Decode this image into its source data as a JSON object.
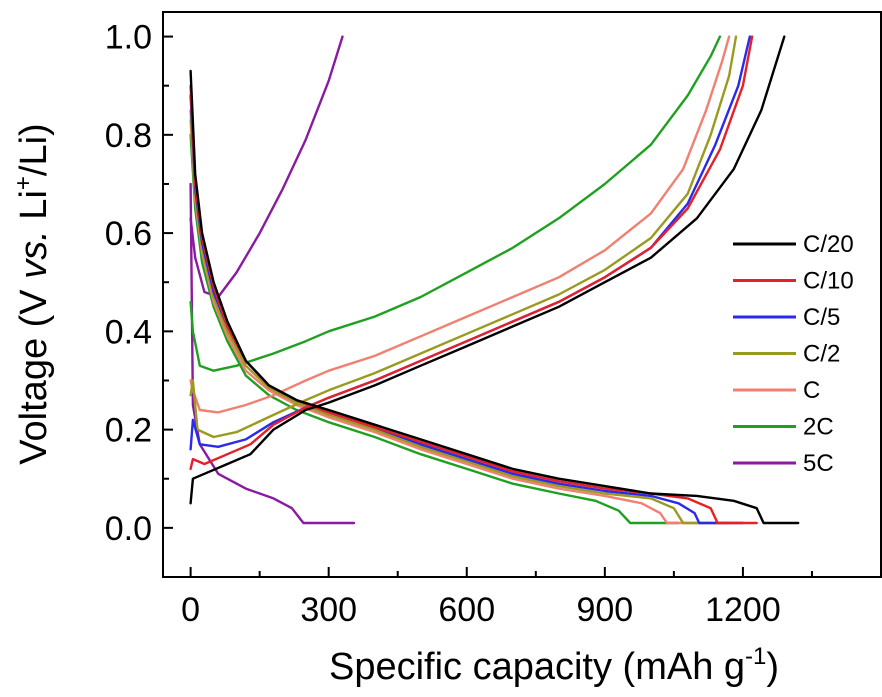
{
  "chart_data": {
    "type": "line",
    "title": "",
    "xlabel_text": "Specific capacity (mAh g",
    "xlabel_sup": "-1",
    "xlabel_close": ")",
    "ylabel_pre": "Voltage (V ",
    "ylabel_vs": "vs.",
    "ylabel_li": " Li",
    "ylabel_sup": "+",
    "ylabel_post": "/Li)",
    "xlim": [
      -60,
      1500
    ],
    "ylim": [
      -0.1,
      1.05
    ],
    "x_ticks": [
      "0",
      "300",
      "600",
      "900",
      "1200"
    ],
    "y_ticks": [
      "0.0",
      "0.2",
      "0.4",
      "0.6",
      "0.8",
      "1.0"
    ],
    "grid": false,
    "legend_position": "right",
    "series": [
      {
        "name": "C/20",
        "color": "#000000",
        "discharge": [
          [
            0,
            0.93
          ],
          [
            10,
            0.72
          ],
          [
            25,
            0.6
          ],
          [
            50,
            0.5
          ],
          [
            80,
            0.42
          ],
          [
            120,
            0.34
          ],
          [
            170,
            0.29
          ],
          [
            230,
            0.26
          ],
          [
            300,
            0.24
          ],
          [
            400,
            0.21
          ],
          [
            500,
            0.18
          ],
          [
            600,
            0.15
          ],
          [
            700,
            0.12
          ],
          [
            800,
            0.1
          ],
          [
            900,
            0.085
          ],
          [
            1000,
            0.07
          ],
          [
            1100,
            0.065
          ],
          [
            1180,
            0.055
          ],
          [
            1230,
            0.04
          ],
          [
            1245,
            0.01
          ],
          [
            1320,
            0.01
          ]
        ],
        "charge": [
          [
            0,
            0.05
          ],
          [
            5,
            0.1
          ],
          [
            30,
            0.11
          ],
          [
            80,
            0.13
          ],
          [
            130,
            0.15
          ],
          [
            180,
            0.2
          ],
          [
            250,
            0.24
          ],
          [
            300,
            0.255
          ],
          [
            400,
            0.29
          ],
          [
            500,
            0.33
          ],
          [
            600,
            0.37
          ],
          [
            700,
            0.41
          ],
          [
            800,
            0.45
          ],
          [
            900,
            0.5
          ],
          [
            1000,
            0.55
          ],
          [
            1100,
            0.63
          ],
          [
            1180,
            0.73
          ],
          [
            1240,
            0.85
          ],
          [
            1290,
            1.0
          ]
        ]
      },
      {
        "name": "C/10",
        "color": "#e4202a",
        "discharge": [
          [
            0,
            0.9
          ],
          [
            10,
            0.7
          ],
          [
            25,
            0.59
          ],
          [
            50,
            0.49
          ],
          [
            80,
            0.41
          ],
          [
            120,
            0.34
          ],
          [
            170,
            0.29
          ],
          [
            230,
            0.26
          ],
          [
            300,
            0.235
          ],
          [
            400,
            0.205
          ],
          [
            500,
            0.175
          ],
          [
            600,
            0.145
          ],
          [
            700,
            0.115
          ],
          [
            800,
            0.095
          ],
          [
            900,
            0.08
          ],
          [
            1000,
            0.07
          ],
          [
            1080,
            0.06
          ],
          [
            1130,
            0.04
          ],
          [
            1145,
            0.01
          ],
          [
            1230,
            0.01
          ]
        ],
        "charge": [
          [
            0,
            0.12
          ],
          [
            5,
            0.14
          ],
          [
            30,
            0.13
          ],
          [
            80,
            0.15
          ],
          [
            130,
            0.17
          ],
          [
            180,
            0.21
          ],
          [
            250,
            0.245
          ],
          [
            300,
            0.265
          ],
          [
            400,
            0.3
          ],
          [
            500,
            0.34
          ],
          [
            600,
            0.38
          ],
          [
            700,
            0.42
          ],
          [
            800,
            0.46
          ],
          [
            900,
            0.51
          ],
          [
            1000,
            0.57
          ],
          [
            1080,
            0.65
          ],
          [
            1150,
            0.77
          ],
          [
            1200,
            0.9
          ],
          [
            1220,
            1.0
          ]
        ]
      },
      {
        "name": "C/5",
        "color": "#2a2ae8",
        "discharge": [
          [
            0,
            0.88
          ],
          [
            10,
            0.69
          ],
          [
            25,
            0.58
          ],
          [
            50,
            0.48
          ],
          [
            80,
            0.41
          ],
          [
            120,
            0.34
          ],
          [
            170,
            0.29
          ],
          [
            230,
            0.26
          ],
          [
            300,
            0.235
          ],
          [
            400,
            0.205
          ],
          [
            500,
            0.17
          ],
          [
            600,
            0.14
          ],
          [
            700,
            0.11
          ],
          [
            800,
            0.09
          ],
          [
            900,
            0.075
          ],
          [
            1000,
            0.065
          ],
          [
            1060,
            0.05
          ],
          [
            1095,
            0.03
          ],
          [
            1105,
            0.01
          ],
          [
            1200,
            0.01
          ]
        ],
        "charge": [
          [
            0,
            0.16
          ],
          [
            5,
            0.22
          ],
          [
            20,
            0.17
          ],
          [
            60,
            0.165
          ],
          [
            120,
            0.18
          ],
          [
            180,
            0.215
          ],
          [
            250,
            0.245
          ],
          [
            300,
            0.265
          ],
          [
            400,
            0.3
          ],
          [
            500,
            0.34
          ],
          [
            600,
            0.38
          ],
          [
            700,
            0.42
          ],
          [
            800,
            0.46
          ],
          [
            900,
            0.51
          ],
          [
            1000,
            0.57
          ],
          [
            1080,
            0.66
          ],
          [
            1140,
            0.78
          ],
          [
            1190,
            0.9
          ],
          [
            1215,
            1.0
          ]
        ]
      },
      {
        "name": "C/2",
        "color": "#9a9a20",
        "discharge": [
          [
            0,
            0.85
          ],
          [
            10,
            0.68
          ],
          [
            25,
            0.57
          ],
          [
            50,
            0.47
          ],
          [
            80,
            0.4
          ],
          [
            120,
            0.33
          ],
          [
            170,
            0.285
          ],
          [
            230,
            0.255
          ],
          [
            300,
            0.23
          ],
          [
            400,
            0.2
          ],
          [
            500,
            0.165
          ],
          [
            600,
            0.135
          ],
          [
            700,
            0.105
          ],
          [
            800,
            0.085
          ],
          [
            900,
            0.07
          ],
          [
            1000,
            0.06
          ],
          [
            1050,
            0.04
          ],
          [
            1070,
            0.01
          ],
          [
            1170,
            0.01
          ]
        ],
        "charge": [
          [
            0,
            0.27
          ],
          [
            5,
            0.3
          ],
          [
            15,
            0.2
          ],
          [
            50,
            0.185
          ],
          [
            100,
            0.195
          ],
          [
            180,
            0.23
          ],
          [
            250,
            0.26
          ],
          [
            300,
            0.28
          ],
          [
            400,
            0.315
          ],
          [
            500,
            0.355
          ],
          [
            600,
            0.395
          ],
          [
            700,
            0.435
          ],
          [
            800,
            0.475
          ],
          [
            900,
            0.525
          ],
          [
            1000,
            0.59
          ],
          [
            1080,
            0.68
          ],
          [
            1130,
            0.8
          ],
          [
            1170,
            0.92
          ],
          [
            1185,
            1.0
          ]
        ]
      },
      {
        "name": "C",
        "color": "#f08070",
        "discharge": [
          [
            0,
            0.83
          ],
          [
            10,
            0.67
          ],
          [
            25,
            0.56
          ],
          [
            50,
            0.46
          ],
          [
            80,
            0.39
          ],
          [
            120,
            0.32
          ],
          [
            170,
            0.28
          ],
          [
            230,
            0.25
          ],
          [
            300,
            0.225
          ],
          [
            400,
            0.195
          ],
          [
            500,
            0.16
          ],
          [
            600,
            0.13
          ],
          [
            700,
            0.1
          ],
          [
            800,
            0.08
          ],
          [
            900,
            0.065
          ],
          [
            980,
            0.05
          ],
          [
            1020,
            0.03
          ],
          [
            1035,
            0.01
          ],
          [
            1140,
            0.01
          ]
        ],
        "charge": [
          [
            0,
            0.3
          ],
          [
            5,
            0.28
          ],
          [
            20,
            0.24
          ],
          [
            60,
            0.235
          ],
          [
            120,
            0.25
          ],
          [
            180,
            0.27
          ],
          [
            250,
            0.3
          ],
          [
            300,
            0.32
          ],
          [
            400,
            0.35
          ],
          [
            500,
            0.39
          ],
          [
            600,
            0.43
          ],
          [
            700,
            0.47
          ],
          [
            800,
            0.51
          ],
          [
            900,
            0.565
          ],
          [
            1000,
            0.64
          ],
          [
            1070,
            0.73
          ],
          [
            1120,
            0.85
          ],
          [
            1155,
            0.95
          ],
          [
            1170,
            1.0
          ]
        ]
      },
      {
        "name": "2C",
        "color": "#20a020",
        "discharge": [
          [
            0,
            0.8
          ],
          [
            10,
            0.65
          ],
          [
            25,
            0.54
          ],
          [
            50,
            0.45
          ],
          [
            80,
            0.38
          ],
          [
            120,
            0.31
          ],
          [
            170,
            0.27
          ],
          [
            230,
            0.24
          ],
          [
            300,
            0.215
          ],
          [
            400,
            0.185
          ],
          [
            500,
            0.15
          ],
          [
            600,
            0.12
          ],
          [
            700,
            0.09
          ],
          [
            800,
            0.07
          ],
          [
            880,
            0.055
          ],
          [
            930,
            0.035
          ],
          [
            955,
            0.01
          ],
          [
            1060,
            0.01
          ]
        ],
        "charge": [
          [
            0,
            0.46
          ],
          [
            5,
            0.4
          ],
          [
            20,
            0.33
          ],
          [
            50,
            0.32
          ],
          [
            100,
            0.33
          ],
          [
            180,
            0.355
          ],
          [
            250,
            0.38
          ],
          [
            300,
            0.4
          ],
          [
            400,
            0.43
          ],
          [
            500,
            0.47
          ],
          [
            600,
            0.52
          ],
          [
            700,
            0.57
          ],
          [
            800,
            0.63
          ],
          [
            900,
            0.7
          ],
          [
            1000,
            0.78
          ],
          [
            1080,
            0.88
          ],
          [
            1130,
            0.96
          ],
          [
            1150,
            1.0
          ]
        ]
      },
      {
        "name": "5C",
        "color": "#8a1aa0",
        "discharge": [
          [
            0,
            0.7
          ],
          [
            5,
            0.25
          ],
          [
            20,
            0.17
          ],
          [
            60,
            0.11
          ],
          [
            120,
            0.08
          ],
          [
            180,
            0.06
          ],
          [
            220,
            0.04
          ],
          [
            245,
            0.01
          ],
          [
            355,
            0.01
          ]
        ],
        "charge": [
          [
            0,
            0.63
          ],
          [
            10,
            0.55
          ],
          [
            30,
            0.48
          ],
          [
            60,
            0.47
          ],
          [
            100,
            0.52
          ],
          [
            150,
            0.6
          ],
          [
            200,
            0.69
          ],
          [
            250,
            0.79
          ],
          [
            300,
            0.91
          ],
          [
            330,
            1.0
          ]
        ]
      }
    ]
  }
}
